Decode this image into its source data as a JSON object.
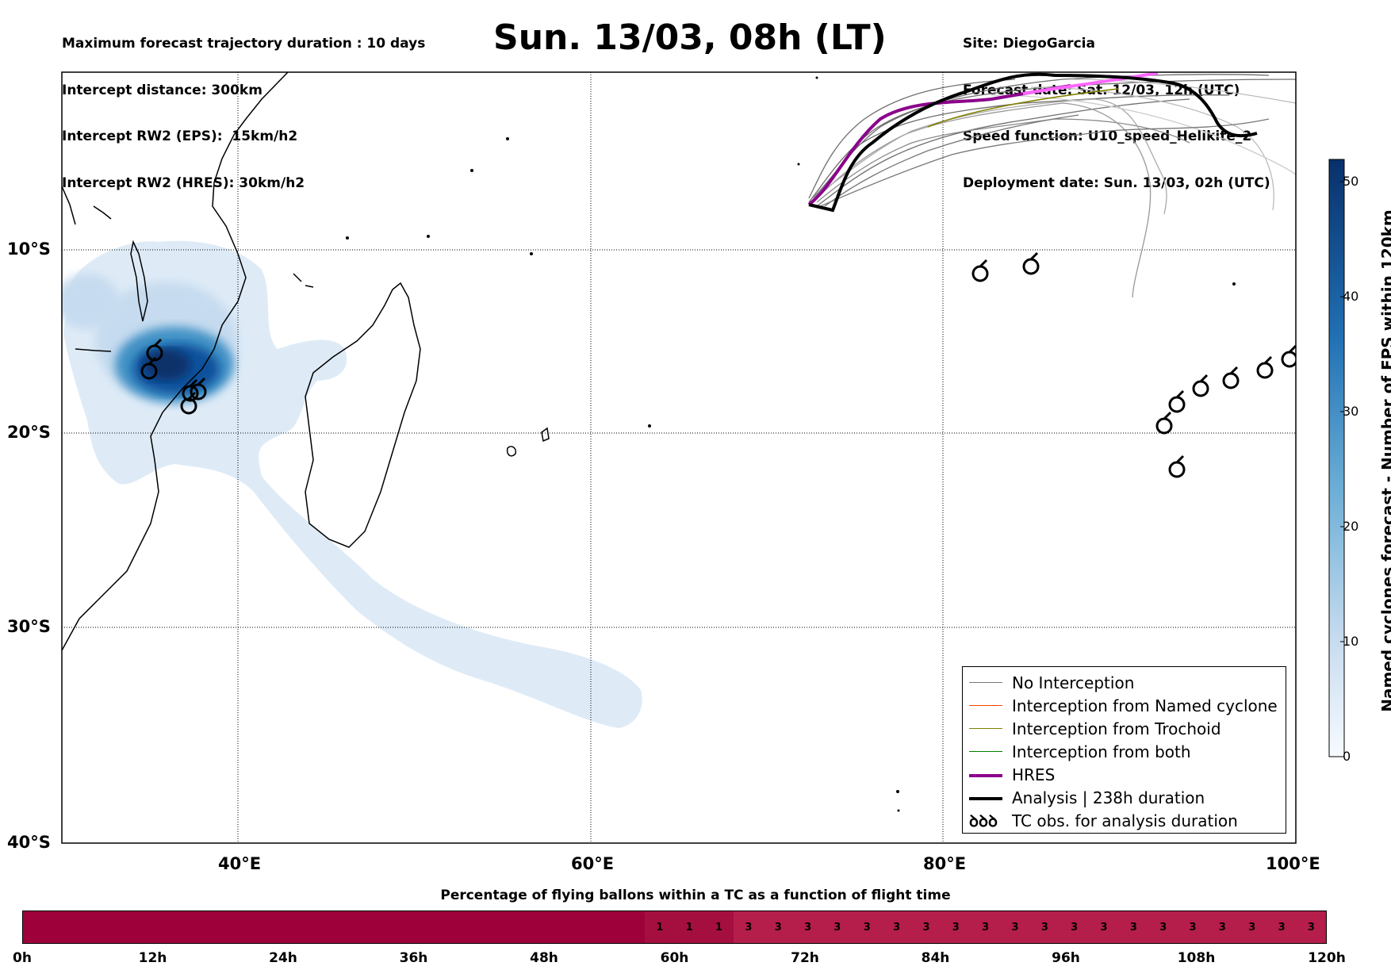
{
  "header": {
    "left_lines": [
      "Maximum forecast trajectory duration : 10 days",
      "Intercept distance: 300km",
      "Intercept RW2 (EPS):  15km/h2",
      "Intercept RW2 (HRES): 30km/h2"
    ],
    "title": "Sun. 13/03, 08h (LT)",
    "right_lines": [
      "Site: DiegoGarcia",
      "Forecast date: Sat. 12/03, 12h (UTC)",
      "Speed function: U10_speed_Helikite_2",
      "Deployment date: Sun. 13/03, 02h (UTC)"
    ]
  },
  "map": {
    "lat_labels": [
      "10°S",
      "20°S",
      "30°S",
      "40°S"
    ],
    "lon_labels": [
      "40°E",
      "60°E",
      "80°E",
      "100°E"
    ],
    "colors": {
      "density_light": "#deebf7",
      "density_dark": "#08306b",
      "hres": "#8b008b",
      "analysis": "#000000"
    }
  },
  "colorbar": {
    "title": "Named cyclones forecast - Number of EPS within 120km",
    "ticks": [
      "0",
      "10",
      "20",
      "30",
      "40",
      "50"
    ],
    "max": 52
  },
  "legend": {
    "items": [
      {
        "label": "No Interception",
        "color": "#777777"
      },
      {
        "label": "Interception from Named cyclone",
        "color": "#ff4500"
      },
      {
        "label": "Interception from Trochoid",
        "color": "#808000"
      },
      {
        "label": "Interception from both",
        "color": "#008000"
      },
      {
        "label": "HRES",
        "color": "#8b008b"
      },
      {
        "label": "Analysis | 238h duration",
        "color": "#000000"
      },
      {
        "label": "TC obs. for analysis duration",
        "symbol": "ꝺꝺꝺ"
      }
    ]
  },
  "flight_bar": {
    "title": "Percentage of flying ballons within a TC as a function of flight time",
    "ticks": [
      "0h",
      "12h",
      "24h",
      "36h",
      "48h",
      "60h",
      "72h",
      "84h",
      "96h",
      "108h",
      "120h"
    ],
    "cells": [
      "",
      "",
      "",
      "",
      "",
      "",
      "",
      "",
      "",
      "",
      "",
      "",
      "",
      "",
      "",
      "",
      "",
      "",
      "",
      "",
      "",
      "1",
      "1",
      "1",
      "3",
      "3",
      "3",
      "3",
      "3",
      "3",
      "3",
      "3",
      "3",
      "3",
      "3",
      "3",
      "3",
      "3",
      "3",
      "3",
      "3",
      "3",
      "3",
      "3"
    ],
    "colors": {
      "zero": "#9e003a",
      "one": "#a50f40",
      "three": "#b51d4b"
    }
  }
}
